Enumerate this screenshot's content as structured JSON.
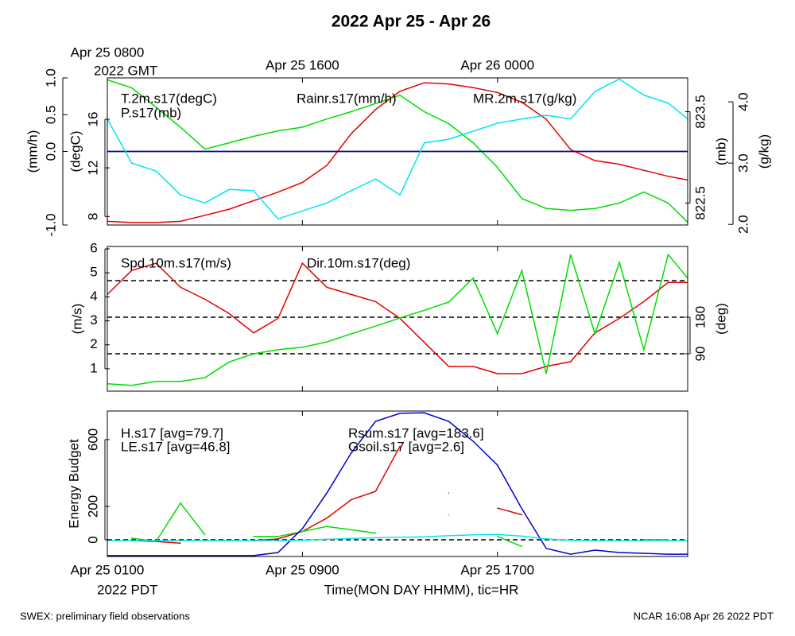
{
  "title": "2022 Apr 25 - Apr 26",
  "top_axis": {
    "note": "2022 GMT",
    "xticks": [
      {
        "value": 0,
        "label": "Apr 25 0800"
      },
      {
        "value": 8,
        "label": "Apr 25 1600"
      },
      {
        "value": 16,
        "label": "Apr 26 0000"
      }
    ]
  },
  "bottom_axis": {
    "note": "2022 PDT",
    "xlabel": "Time(MON DAY HHMM), tic=HR",
    "xticks": [
      {
        "value": 0,
        "label": "Apr 25 0100"
      },
      {
        "value": 8,
        "label": "Apr 25 0900"
      },
      {
        "value": 16,
        "label": "Apr 25 1700"
      }
    ]
  },
  "footer_left": "SWEX: preliminary field observations",
  "footer_right": "NCAR 16:08 Apr 26 2022 PDT",
  "chart_data": [
    {
      "type": "line",
      "xlim": [
        0,
        23.8
      ],
      "x": [
        0,
        1,
        2,
        3,
        4,
        5,
        6,
        7,
        8,
        9,
        10,
        11,
        12,
        13,
        14,
        15,
        16,
        17,
        18,
        19,
        20,
        21,
        22,
        23,
        23.8
      ],
      "axes": [
        {
          "label": "(mm/h)",
          "ylim": [
            -1,
            1
          ],
          "yticks": [
            {
              "value": -1,
              "label": "-1.0"
            },
            {
              "value": 0,
              "label": "0.0"
            },
            0.5,
            {
              "value": 1,
              "label": "1.0"
            }
          ]
        },
        {
          "label": "(degC)",
          "ylim": [
            7.3,
            19.4
          ],
          "yticks": [
            8,
            12,
            16
          ]
        },
        {
          "label": "(mb)",
          "ylim": [
            822.26,
            823.87
          ],
          "yticks": [
            822.5,
            823.5
          ]
        },
        {
          "label": "(g/kg)",
          "ylim": [
            1.99,
            4.39
          ],
          "yticks": [
            {
              "value": 2,
              "label": "2.0"
            },
            {
              "value": 3,
              "label": "3.0"
            },
            {
              "value": 4,
              "label": "4.0"
            }
          ]
        }
      ],
      "hlines": {
        "axis": 0,
        "values": [
          0
        ],
        "dashed": false
      },
      "series": [
        {
          "name": "T.2m.s17(degC)",
          "color": "#e60000",
          "axis": 1,
          "values": [
            7.6,
            7.5,
            7.5,
            7.6,
            8.1,
            8.6,
            9.3,
            10.0,
            10.8,
            12.2,
            14.8,
            16.8,
            18.3,
            19.0,
            18.9,
            18.6,
            18.2,
            17.4,
            16.0,
            13.5,
            12.6,
            12.3,
            11.8,
            11.3,
            11.0
          ]
        },
        {
          "name": "P.s17(mb)",
          "color": "#00dd00",
          "axis": 2,
          "values": [
            823.85,
            823.76,
            823.55,
            823.33,
            823.09,
            823.16,
            823.23,
            823.29,
            823.33,
            823.42,
            823.5,
            823.59,
            823.68,
            823.5,
            823.37,
            823.16,
            822.89,
            822.55,
            822.44,
            822.42,
            822.44,
            822.5,
            822.62,
            822.5,
            822.29
          ]
        },
        {
          "name": "Rainr.s17(mm/h)",
          "color": "#0000cc",
          "axis": 0,
          "values": [
            0,
            0,
            0,
            0,
            0,
            0,
            0,
            0,
            0,
            0,
            0,
            0,
            0,
            0,
            0,
            0,
            0,
            0,
            0,
            0,
            0,
            0,
            0,
            0,
            0
          ]
        },
        {
          "name": "MR.2m.s17(g/kg)",
          "color": "#00e5ee",
          "axis": 3,
          "values": [
            3.72,
            3.0,
            2.87,
            2.48,
            2.35,
            2.57,
            2.55,
            2.09,
            2.22,
            2.35,
            2.55,
            2.74,
            2.48,
            3.33,
            3.39,
            3.52,
            3.65,
            3.72,
            3.78,
            3.72,
            4.17,
            4.37,
            4.11,
            3.98,
            3.72
          ]
        }
      ]
    },
    {
      "type": "line",
      "xlim": [
        0,
        23.8
      ],
      "x": [
        0,
        1,
        2,
        3,
        4,
        5,
        6,
        7,
        8,
        9,
        10,
        11,
        12,
        13,
        14,
        15,
        16,
        17,
        18,
        19,
        20,
        21,
        22,
        23,
        23.8
      ],
      "axes": [
        {
          "label": "(m/s)",
          "ylim": [
            0.07,
            6.1
          ],
          "yticks": [
            1,
            2,
            3,
            4,
            5,
            6
          ]
        },
        {
          "label": "(deg)",
          "ylim": [
            -2,
            354
          ],
          "yticks": [
            90,
            180
          ]
        }
      ],
      "hlines": {
        "axis": 1,
        "values": [
          90,
          180,
          270
        ],
        "dashed": true
      },
      "series": [
        {
          "name": "Spd.10m.s17(m/s)",
          "color": "#e60000",
          "axis": 0,
          "values": [
            4.1,
            5.1,
            5.4,
            4.4,
            3.9,
            3.3,
            2.5,
            3.1,
            5.4,
            4.4,
            4.1,
            3.8,
            3.1,
            2.1,
            1.1,
            1.1,
            0.8,
            0.8,
            1.1,
            1.3,
            2.5,
            3.1,
            3.8,
            4.6,
            4.6
          ]
        },
        {
          "name": "Dir.10m.s17(deg)",
          "color": "#00dd00",
          "axis": 1,
          "values": [
            16,
            12,
            22,
            22,
            31,
            70,
            90,
            100,
            106,
            119,
            139,
            158,
            178,
            197,
            217,
            276,
            139,
            295,
            41,
            334,
            139,
            315,
            100,
            334,
            276
          ]
        }
      ]
    },
    {
      "type": "line",
      "xlim": [
        0,
        23.8
      ],
      "x": [
        0,
        1,
        2,
        3,
        4,
        5,
        6,
        7,
        8,
        9,
        10,
        11,
        12,
        13,
        14,
        15,
        16,
        17,
        18,
        19,
        20,
        21,
        22,
        23,
        23.8
      ],
      "axes": [
        {
          "label": "Energy Budget",
          "ylim": [
            -100,
            771
          ],
          "yticks": [
            0,
            200,
            600
          ]
        }
      ],
      "hlines": {
        "axis": 0,
        "values": [
          0
        ],
        "dashed": true
      },
      "series": [
        {
          "name": "H.s17 [avg=79.7]",
          "color": "#e60000",
          "axis": 0,
          "values": [
            null,
            -5,
            -10,
            -20,
            null,
            null,
            -5,
            5,
            50,
            130,
            240,
            290,
            560,
            null,
            280,
            null,
            190,
            150,
            null,
            null,
            null,
            null,
            null,
            null,
            null
          ]
        },
        {
          "name": "LE.s17 [avg=46.8]",
          "color": "#00dd00",
          "axis": 0,
          "values": [
            null,
            10,
            -10,
            220,
            30,
            null,
            20,
            20,
            50,
            80,
            60,
            40,
            null,
            null,
            150,
            null,
            20,
            -40,
            null,
            null,
            null,
            null,
            0,
            0,
            null
          ]
        },
        {
          "name": "Rsum.s17 [avg=183.6]",
          "color": "#0000cc",
          "axis": 0,
          "values": [
            -95,
            -95,
            -95,
            -95,
            -95,
            -95,
            -95,
            -76,
            67,
            280,
            519,
            709,
            757,
            760,
            709,
            590,
            447,
            186,
            -52,
            -86,
            -62,
            -76,
            -81,
            -86,
            -86
          ]
        },
        {
          "name": "Gsoil.s17 [avg=2.6]",
          "color": "#00e5ee",
          "axis": 0,
          "values": [
            -5,
            -5,
            -5,
            -5,
            -5,
            -5,
            -5,
            -5,
            -3,
            3,
            8,
            12,
            15,
            18,
            24,
            30,
            32,
            22,
            5,
            -3,
            -5,
            -5,
            -5,
            -5,
            -5
          ]
        }
      ]
    }
  ]
}
